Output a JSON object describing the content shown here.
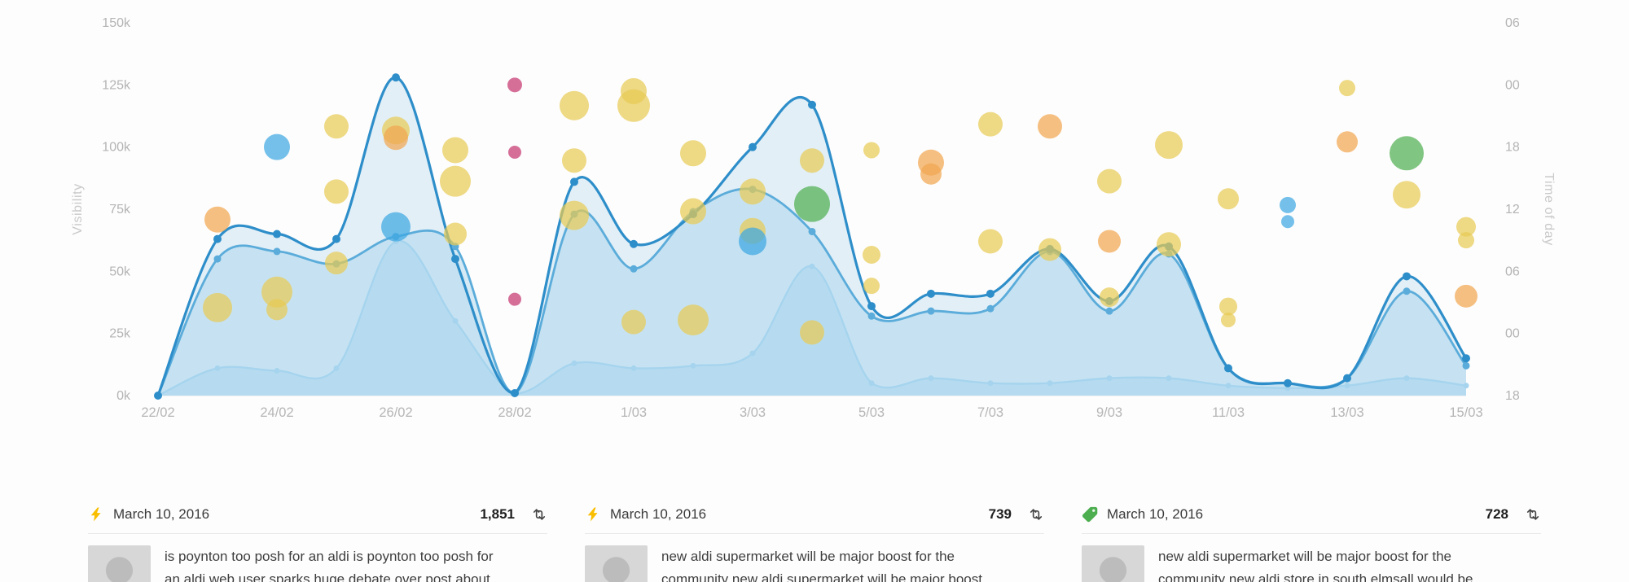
{
  "chart": {
    "y_left": {
      "title": "Visibility",
      "min": 0,
      "max": 150,
      "tick_labels": [
        "150k",
        "125k",
        "100k",
        "75k",
        "50k",
        "25k",
        "0k"
      ],
      "tick_values": [
        150,
        125,
        100,
        75,
        50,
        25,
        0
      ]
    },
    "y_right": {
      "title": "Time of day",
      "min": 18,
      "max": 54,
      "tick_labels": [
        "06",
        "00",
        "18",
        "12",
        "06",
        "00",
        "18"
      ],
      "tick_values": [
        54,
        48,
        42,
        36,
        30,
        24,
        18
      ]
    },
    "x_axis": {
      "tick_labels": [
        "22/02",
        "24/02",
        "26/02",
        "28/02",
        "1/03",
        "3/03",
        "5/03",
        "7/03",
        "9/03",
        "11/03",
        "13/03",
        "15/03"
      ],
      "tick_days": [
        0,
        2,
        4,
        6,
        8,
        10,
        12,
        14,
        16,
        18,
        20,
        22
      ]
    }
  },
  "chart_data": {
    "type": "line+bubble",
    "x_unit": "day index, 0 = 22/02/2016 through 22 = 15/03/2016 (2016 is a leap year, 29/02 = day 7)",
    "x_days_max": 22,
    "series": [
      {
        "name": "series-dark",
        "color": "#2e8ec9",
        "area": "rgba(164,210,236,0.30)",
        "width": 3.2,
        "dot_r": 5,
        "values": [
          0,
          63,
          65,
          63,
          128,
          55,
          1,
          86,
          61,
          73,
          100,
          117,
          36,
          41,
          41,
          59,
          38,
          60,
          11,
          5,
          7,
          48,
          15
        ]
      },
      {
        "name": "series-medium",
        "color": "#5bacda",
        "area": "rgba(164,210,236,0.45)",
        "width": 2.8,
        "dot_r": 4.5,
        "values": [
          0,
          55,
          58,
          53,
          64,
          60,
          1,
          73,
          51,
          74,
          83,
          66,
          32,
          34,
          35,
          58,
          34,
          57,
          11,
          5,
          7,
          42,
          12
        ]
      },
      {
        "name": "series-light",
        "color": "#a6d4ee",
        "area": "rgba(170,214,238,0.55)",
        "width": 2.4,
        "dot_r": 3.5,
        "values": [
          0,
          11,
          10,
          11,
          62,
          30,
          1,
          13,
          11,
          12,
          17,
          52,
          5,
          7,
          5,
          5,
          7,
          7,
          4,
          3,
          4,
          7,
          4
        ]
      }
    ],
    "bubble_palette": {
      "yellow": "#e8cb55",
      "orange": "#f1a650",
      "blue": "#3fa7e2",
      "green": "#4fae51",
      "pink": "#d05f8d"
    },
    "bubbles": [
      {
        "d": 1,
        "t": 35,
        "r": 16,
        "c": "orange"
      },
      {
        "d": 1,
        "t": 26.5,
        "r": 18,
        "c": "yellow"
      },
      {
        "d": 2,
        "t": 42,
        "r": 16,
        "c": "blue"
      },
      {
        "d": 2,
        "t": 28,
        "r": 19,
        "c": "yellow"
      },
      {
        "d": 2,
        "t": 26.3,
        "r": 13,
        "c": "yellow"
      },
      {
        "d": 3,
        "t": 44,
        "r": 15,
        "c": "yellow"
      },
      {
        "d": 3,
        "t": 37.7,
        "r": 15,
        "c": "yellow"
      },
      {
        "d": 3,
        "t": 30.8,
        "r": 14,
        "c": "yellow"
      },
      {
        "d": 4,
        "t": 43.6,
        "r": 17,
        "c": "yellow"
      },
      {
        "d": 4,
        "t": 42.9,
        "r": 15,
        "c": "orange"
      },
      {
        "d": 4,
        "t": 34.3,
        "r": 18,
        "c": "blue"
      },
      {
        "d": 5,
        "t": 41.7,
        "r": 16,
        "c": "yellow"
      },
      {
        "d": 5,
        "t": 38.7,
        "r": 19,
        "c": "yellow"
      },
      {
        "d": 5,
        "t": 33.6,
        "r": 14,
        "c": "yellow"
      },
      {
        "d": 6,
        "t": 48,
        "r": 9,
        "c": "pink"
      },
      {
        "d": 6,
        "t": 41.5,
        "r": 8,
        "c": "pink"
      },
      {
        "d": 6,
        "t": 27.3,
        "r": 8,
        "c": "pink"
      },
      {
        "d": 7,
        "t": 46,
        "r": 18,
        "c": "yellow"
      },
      {
        "d": 7,
        "t": 40.7,
        "r": 15,
        "c": "yellow"
      },
      {
        "d": 7,
        "t": 35.4,
        "r": 18,
        "c": "yellow"
      },
      {
        "d": 8,
        "t": 47.4,
        "r": 16,
        "c": "yellow"
      },
      {
        "d": 8,
        "t": 46,
        "r": 20,
        "c": "yellow"
      },
      {
        "d": 8,
        "t": 25.1,
        "r": 15,
        "c": "yellow"
      },
      {
        "d": 9,
        "t": 41.4,
        "r": 16,
        "c": "yellow"
      },
      {
        "d": 9,
        "t": 35.8,
        "r": 16,
        "c": "yellow"
      },
      {
        "d": 9,
        "t": 25.3,
        "r": 19,
        "c": "yellow"
      },
      {
        "d": 10,
        "t": 37.7,
        "r": 16,
        "c": "yellow"
      },
      {
        "d": 10,
        "t": 33.9,
        "r": 16,
        "c": "yellow"
      },
      {
        "d": 10,
        "t": 32.9,
        "r": 17,
        "c": "blue"
      },
      {
        "d": 11,
        "t": 36.5,
        "r": 22,
        "c": "green"
      },
      {
        "d": 11,
        "t": 40.7,
        "r": 15,
        "c": "yellow"
      },
      {
        "d": 11,
        "t": 24.1,
        "r": 15,
        "c": "yellow"
      },
      {
        "d": 12,
        "t": 41.7,
        "r": 10,
        "c": "yellow"
      },
      {
        "d": 12,
        "t": 31.6,
        "r": 11,
        "c": "yellow"
      },
      {
        "d": 12,
        "t": 28.6,
        "r": 10,
        "c": "yellow"
      },
      {
        "d": 13,
        "t": 40.5,
        "r": 16,
        "c": "orange"
      },
      {
        "d": 13,
        "t": 39.4,
        "r": 13,
        "c": "orange"
      },
      {
        "d": 14,
        "t": 44.2,
        "r": 15,
        "c": "yellow"
      },
      {
        "d": 14,
        "t": 32.9,
        "r": 15,
        "c": "yellow"
      },
      {
        "d": 15,
        "t": 44,
        "r": 15,
        "c": "orange"
      },
      {
        "d": 15,
        "t": 32.1,
        "r": 14,
        "c": "yellow"
      },
      {
        "d": 16,
        "t": 38.7,
        "r": 15,
        "c": "yellow"
      },
      {
        "d": 16,
        "t": 32.9,
        "r": 14,
        "c": "orange"
      },
      {
        "d": 16,
        "t": 27.5,
        "r": 12,
        "c": "yellow"
      },
      {
        "d": 17,
        "t": 42.2,
        "r": 17,
        "c": "yellow"
      },
      {
        "d": 17,
        "t": 32.6,
        "r": 15,
        "c": "yellow"
      },
      {
        "d": 18,
        "t": 37,
        "r": 13,
        "c": "yellow"
      },
      {
        "d": 18,
        "t": 26.6,
        "r": 11,
        "c": "yellow"
      },
      {
        "d": 18,
        "t": 25.3,
        "r": 9,
        "c": "yellow"
      },
      {
        "d": 19,
        "t": 36.4,
        "r": 10,
        "c": "blue"
      },
      {
        "d": 19,
        "t": 34.8,
        "r": 8,
        "c": "blue"
      },
      {
        "d": 20,
        "t": 47.7,
        "r": 10,
        "c": "yellow"
      },
      {
        "d": 20,
        "t": 42.5,
        "r": 13,
        "c": "orange"
      },
      {
        "d": 21,
        "t": 41.4,
        "r": 21,
        "c": "green"
      },
      {
        "d": 21,
        "t": 37.4,
        "r": 17,
        "c": "yellow"
      },
      {
        "d": 22,
        "t": 34.3,
        "r": 12,
        "c": "yellow"
      },
      {
        "d": 22,
        "t": 33,
        "r": 10,
        "c": "yellow"
      },
      {
        "d": 22,
        "t": 27.6,
        "r": 14,
        "c": "orange"
      }
    ]
  },
  "cards": [
    {
      "icon": "lightning-icon",
      "date": "March 10, 2016",
      "count": "1,851",
      "lines": [
        "is poynton too posh for an aldi is poynton too posh for",
        "an aldi web user sparks huge debate over post about"
      ]
    },
    {
      "icon": "lightning-icon",
      "date": "March 10, 2016",
      "count": "739",
      "lines": [
        "new aldi supermarket will be major boost for the",
        "community new aldi supermarket will be major boost"
      ]
    },
    {
      "icon": "tag-icon",
      "date": "March 10, 2016",
      "count": "728",
      "lines": [
        "new aldi supermarket will be major boost for the",
        "community new aldi store in south elmsall would be"
      ]
    }
  ]
}
